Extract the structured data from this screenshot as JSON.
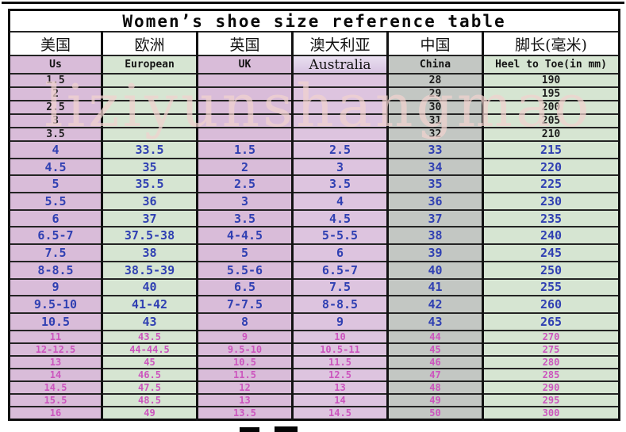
{
  "title": "Women’s shoe size reference table",
  "watermark": "liziyunshangmao",
  "columns": [
    {
      "cn": "美国",
      "en": "Us"
    },
    {
      "cn": "欧洲",
      "en": "European"
    },
    {
      "cn": "英国",
      "en": "UK"
    },
    {
      "cn": "澳大利亚",
      "en": "Australia"
    },
    {
      "cn": "中国",
      "en": "China"
    },
    {
      "cn": "脚长(毫米)",
      "en": "Heel to Toe(in mm)"
    }
  ],
  "sections": [
    {
      "name": "small-sizes",
      "text_color": "#1d1d1d",
      "rows": [
        [
          "1.5",
          "",
          "",
          "",
          "28",
          "190"
        ],
        [
          "2",
          "",
          "",
          "",
          "29",
          "195"
        ],
        [
          "2.5",
          "",
          "",
          "",
          "30",
          "200"
        ],
        [
          "3",
          "",
          "",
          "",
          "31",
          "205"
        ],
        [
          "3.5",
          "",
          "",
          "",
          "32",
          "210"
        ]
      ]
    },
    {
      "name": "regular-sizes",
      "text_color": "#3040b2",
      "rows": [
        [
          "4",
          "33.5",
          "1.5",
          "2.5",
          "33",
          "215"
        ],
        [
          "4.5",
          "35",
          "2",
          "3",
          "34",
          "220"
        ],
        [
          "5",
          "35.5",
          "2.5",
          "3.5",
          "35",
          "225"
        ],
        [
          "5.5",
          "36",
          "3",
          "4",
          "36",
          "230"
        ],
        [
          "6",
          "37",
          "3.5",
          "4.5",
          "37",
          "235"
        ],
        [
          "6.5-7",
          "37.5-38",
          "4-4.5",
          "5-5.5",
          "38",
          "240"
        ],
        [
          "7.5",
          "38",
          "5",
          "6",
          "39",
          "245"
        ],
        [
          "8-8.5",
          "38.5-39",
          "5.5-6",
          "6.5-7",
          "40",
          "250"
        ],
        [
          "9",
          "40",
          "6.5",
          "7.5",
          "41",
          "255"
        ],
        [
          "9.5-10",
          "41-42",
          "7-7.5",
          "8-8.5",
          "42",
          "260"
        ],
        [
          "10.5",
          "43",
          "8",
          "9",
          "43",
          "265"
        ]
      ]
    },
    {
      "name": "large-sizes",
      "text_color": "#cc55be",
      "rows": [
        [
          "11",
          "43.5",
          "9",
          "10",
          "44",
          "270"
        ],
        [
          "12-12.5",
          "44-44.5",
          "9.5-10",
          "10.5-11",
          "45",
          "275"
        ],
        [
          "13",
          "45",
          "10.5",
          "11.5",
          "46",
          "280"
        ],
        [
          "14",
          "46.5",
          "11.5",
          "12.5",
          "47",
          "285"
        ],
        [
          "14.5",
          "47.5",
          "12",
          "13",
          "48",
          "290"
        ],
        [
          "15.5",
          "48.5",
          "13",
          "14",
          "49",
          "295"
        ],
        [
          "16",
          "49",
          "13.5",
          "14.5",
          "50",
          "300"
        ]
      ]
    }
  ],
  "palette": {
    "purple_column": "#d9bcd9",
    "purple_column_australia": "#ddc4df",
    "green_column": "#d6e5d2",
    "gray_column": "#c3c7c3",
    "blue_text": "#3040b2",
    "pink_text": "#cc55be",
    "black_text": "#1d1d1d",
    "border": "#121212",
    "watermark_pink": "#f1d3cf"
  }
}
